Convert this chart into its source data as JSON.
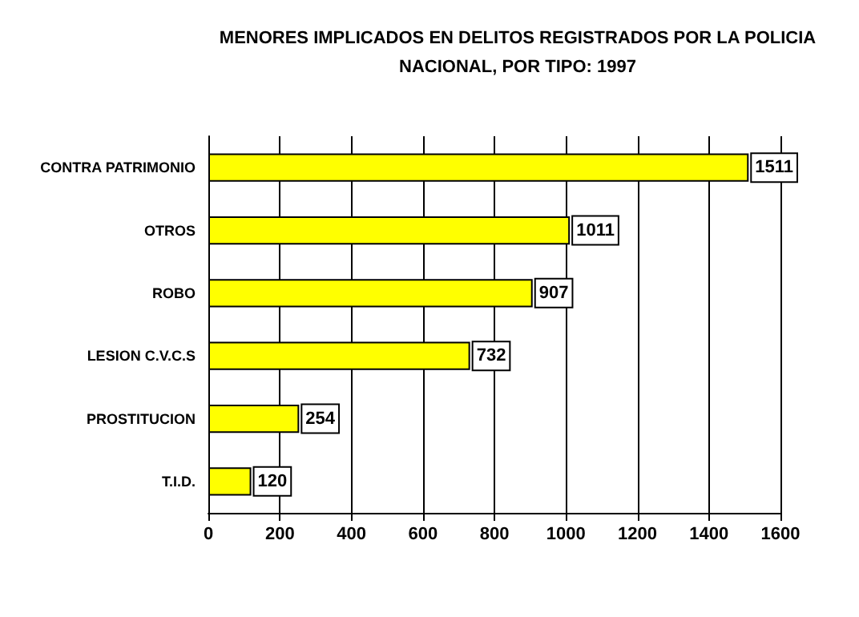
{
  "chart_data": {
    "type": "bar",
    "orientation": "horizontal",
    "title": "MENORES IMPLICADOS EN DELITOS REGISTRADOS POR LA POLICIA\nNACIONAL, POR TIPO: 1997",
    "categories": [
      "CONTRA PATRIMONIO",
      "OTROS",
      "ROBO",
      "LESION C.V.C.S",
      "PROSTITUCION",
      "T.I.D."
    ],
    "values": [
      1511,
      1011,
      907,
      732,
      254,
      120
    ],
    "color": "#ffff00",
    "xlim": [
      0,
      1600
    ],
    "xticks": [
      0,
      200,
      400,
      600,
      800,
      1000,
      1200,
      1400,
      1600
    ],
    "grid": "x",
    "data_labels": true
  }
}
